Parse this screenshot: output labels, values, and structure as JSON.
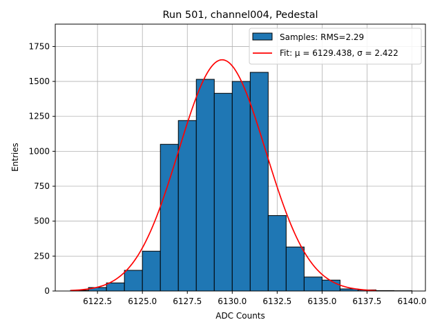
{
  "chart_data": {
    "type": "bar",
    "title": "Run 501, channel004, Pedestal",
    "xlabel": "ADC Counts",
    "ylabel": "Entries",
    "xlim": [
      6120.15,
      6140.75
    ],
    "ylim": [
      0,
      1910
    ],
    "grid": true,
    "legend_position": "top-right",
    "x_ticks": [
      6122.5,
      6125.0,
      6127.5,
      6130.0,
      6132.5,
      6135.0,
      6137.5,
      6140.0
    ],
    "x_tick_labels": [
      "6122.5",
      "6125.0",
      "6127.5",
      "6130.0",
      "6132.5",
      "6135.0",
      "6137.5",
      "6140.0"
    ],
    "y_ticks": [
      0,
      250,
      500,
      750,
      1000,
      1250,
      1500,
      1750
    ],
    "y_tick_labels": [
      "0",
      "250",
      "500",
      "750",
      "1000",
      "1250",
      "1500",
      "1750"
    ],
    "bin_edges": [
      6121.0,
      6122.0,
      6123.0,
      6124.0,
      6125.0,
      6126.0,
      6127.0,
      6128.0,
      6129.0,
      6130.0,
      6131.0,
      6132.0,
      6133.0,
      6134.0,
      6135.0,
      6136.0,
      6137.0,
      6138.0,
      6139.0,
      6140.0
    ],
    "values": [
      5,
      25,
      58,
      148,
      285,
      1050,
      1220,
      1515,
      1415,
      1500,
      1565,
      540,
      315,
      100,
      78,
      15,
      8,
      3,
      2
    ],
    "series": [
      {
        "name": "Samples: RMS=2.29",
        "kind": "histogram",
        "color": "#1f77b4",
        "edgecolor": "#000000"
      },
      {
        "name": "Fit: μ = 6129.438, σ = 2.422",
        "kind": "gaussian",
        "color": "#ff0000",
        "amplitude": 1655,
        "mu": 6129.438,
        "sigma": 2.422,
        "x_range": [
          6121.0,
          6138.0
        ]
      }
    ]
  }
}
